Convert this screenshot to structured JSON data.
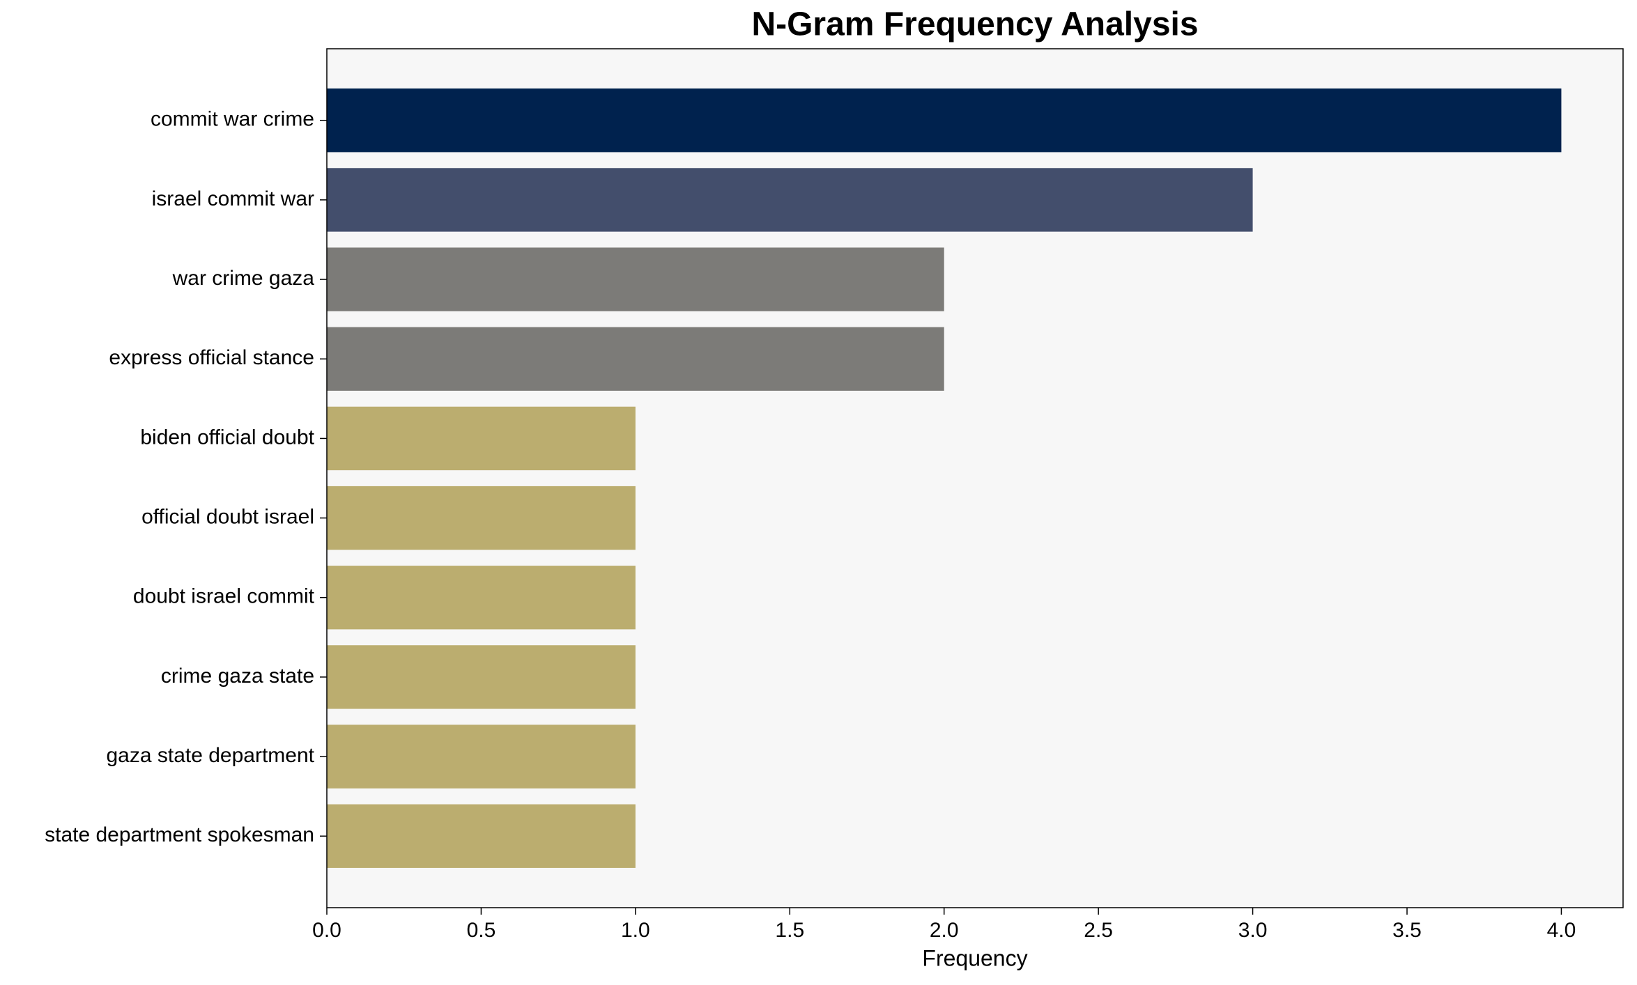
{
  "chart_data": {
    "type": "barh",
    "title": "N-Gram Frequency Analysis",
    "x_label": "Frequency",
    "categories": [
      "commit war crime",
      "israel commit war",
      "war crime gaza",
      "express official stance",
      "biden official doubt",
      "official doubt israel",
      "doubt israel commit",
      "crime gaza state",
      "gaza state department",
      "state department spokesman"
    ],
    "values": [
      4,
      3,
      2,
      2,
      1,
      1,
      1,
      1,
      1,
      1
    ],
    "colors": [
      "#00224e",
      "#434e6c",
      "#7c7b78",
      "#7c7b78",
      "#bbad6f",
      "#bbad6f",
      "#bbad6f",
      "#bbad6f",
      "#bbad6f",
      "#bbad6f"
    ],
    "xlim": [
      0,
      4.2
    ],
    "xticks": [
      {
        "value": 0,
        "label": "0.0"
      },
      0.5,
      {
        "value": 1,
        "label": "1.0"
      },
      1.5,
      {
        "value": 2,
        "label": "2.0"
      },
      2.5,
      {
        "value": 3,
        "label": "3.0"
      },
      3.5,
      {
        "value": 4,
        "label": "4.0"
      }
    ],
    "grid": false
  }
}
